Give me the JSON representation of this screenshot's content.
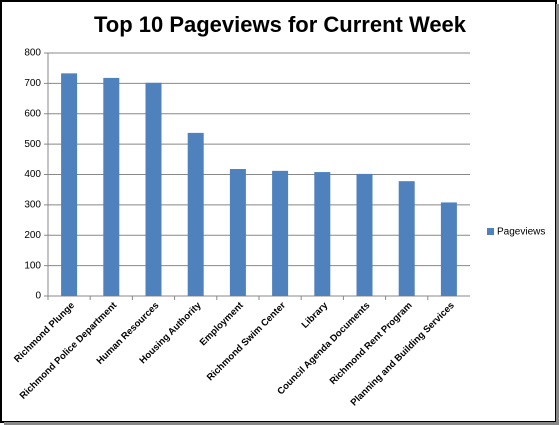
{
  "chart_data": {
    "type": "bar",
    "title": "Top 10 Pageviews for Current Week",
    "categories": [
      "Richmond Plunge",
      "Richmond Police Department",
      "Human Resources",
      "Housing Authority",
      "Employment",
      "Richmond Swim Center",
      "Library",
      "Council Agenda Documents",
      "Richmond Rent Program",
      "Planning and Building Services"
    ],
    "series": [
      {
        "name": "Pageviews",
        "color": "#4f81bd",
        "values": [
          733,
          718,
          702,
          537,
          418,
          412,
          408,
          402,
          378,
          308
        ]
      }
    ],
    "ylim": [
      0,
      800
    ],
    "yticks": [
      0,
      100,
      200,
      300,
      400,
      500,
      600,
      700,
      800
    ],
    "grid": true,
    "legend": "right"
  }
}
